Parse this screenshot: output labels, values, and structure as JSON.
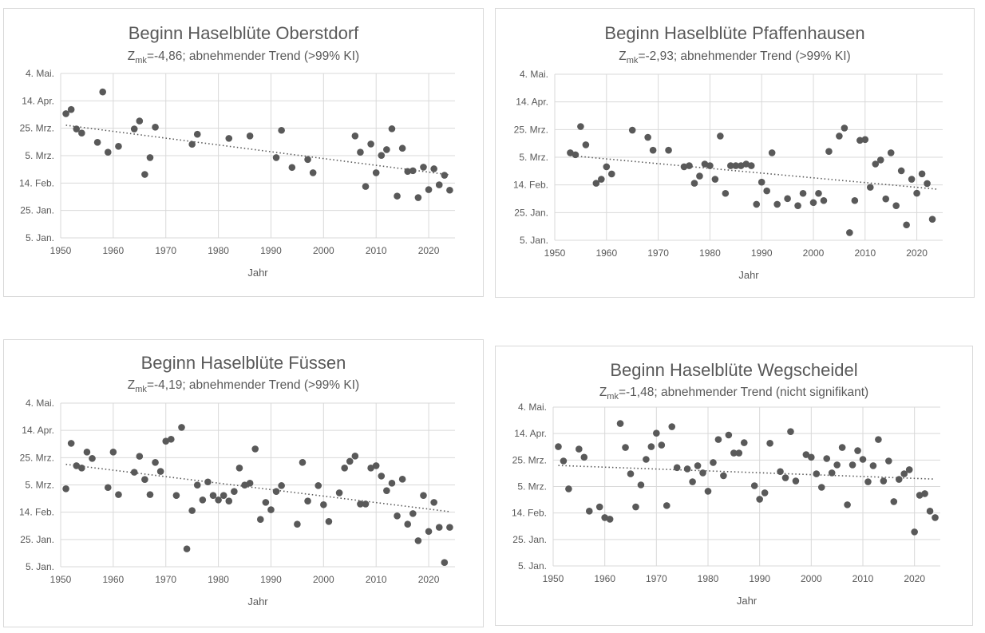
{
  "chart_data": [
    {
      "type": "scatter",
      "title": "Beginn Haselblüte Oberstdorf",
      "subtitle_prefix": "Z",
      "subtitle_sub": "mk",
      "subtitle_rest": "=-4,86; abnehmender Trend (>99% KI)",
      "xlabel": "Jahr",
      "xlim": [
        1950,
        2025
      ],
      "ylim": [
        5,
        125
      ],
      "xticks": [
        1950,
        1960,
        1970,
        1980,
        1990,
        2000,
        2010,
        2020
      ],
      "yticks": [
        {
          "v": 125,
          "label": "4. Mai."
        },
        {
          "v": 105,
          "label": "14. Apr."
        },
        {
          "v": 85,
          "label": "25. Mrz."
        },
        {
          "v": 65,
          "label": "5. Mrz."
        },
        {
          "v": 45,
          "label": "14. Feb."
        },
        {
          "v": 25,
          "label": "25. Jan."
        },
        {
          "v": 5,
          "label": "5. Jan."
        }
      ],
      "y_units": "day of year",
      "trend": [
        [
          1951,
          87.2
        ],
        [
          2024,
          51.0
        ]
      ],
      "points": [
        [
          1951,
          95.6
        ],
        [
          1952,
          98.7
        ],
        [
          1953,
          84.5
        ],
        [
          1954,
          81.5
        ],
        [
          1957,
          74.7
        ],
        [
          1958,
          111.5
        ],
        [
          1959,
          67.5
        ],
        [
          1961,
          71.8
        ],
        [
          1964,
          84.5
        ],
        [
          1965,
          90.3
        ],
        [
          1966,
          51.3
        ],
        [
          1967,
          63.6
        ],
        [
          1968,
          85.8
        ],
        [
          1975,
          73.3
        ],
        [
          1976,
          80.6
        ],
        [
          1982,
          77.6
        ],
        [
          1986,
          79.4
        ],
        [
          1991,
          63.6
        ],
        [
          1992,
          83.5
        ],
        [
          1994,
          56.4
        ],
        [
          1997,
          62.2
        ],
        [
          1998,
          52.5
        ],
        [
          2006,
          79.4
        ],
        [
          2007,
          67.5
        ],
        [
          2008,
          42.5
        ],
        [
          2009,
          73.5
        ],
        [
          2010,
          52.5
        ],
        [
          2011,
          65.2
        ],
        [
          2012,
          69.4
        ],
        [
          2013,
          84.6
        ],
        [
          2014,
          35.5
        ],
        [
          2015,
          70.4
        ],
        [
          2016,
          53.5
        ],
        [
          2017,
          54.0
        ],
        [
          2018,
          34.4
        ],
        [
          2019,
          56.6
        ],
        [
          2020,
          40.2
        ],
        [
          2021,
          55.4
        ],
        [
          2022,
          43.7
        ],
        [
          2023,
          50.7
        ],
        [
          2024,
          39.8
        ]
      ]
    },
    {
      "type": "scatter",
      "title": "Beginn Haselblüte Pfaffenhausen",
      "subtitle_prefix": "Z",
      "subtitle_sub": "mk",
      "subtitle_rest": "=-2,93; abnehmender Trend (>99% KI)",
      "xlabel": "Jahr",
      "xlim": [
        1950,
        2025
      ],
      "ylim": [
        5,
        125
      ],
      "xticks": [
        1950,
        1960,
        1970,
        1980,
        1990,
        2000,
        2010,
        2020
      ],
      "yticks": [
        {
          "v": 125,
          "label": "4. Mai."
        },
        {
          "v": 105,
          "label": "14. Apr."
        },
        {
          "v": 85,
          "label": "25. Mrz."
        },
        {
          "v": 65,
          "label": "5. Mrz."
        },
        {
          "v": 45,
          "label": "14. Feb."
        },
        {
          "v": 25,
          "label": "25. Jan."
        },
        {
          "v": 5,
          "label": "5. Jan."
        }
      ],
      "y_units": "day of year",
      "trend": [
        [
          1953,
          66.2
        ],
        [
          2024,
          41.9
        ]
      ],
      "points": [
        [
          1953,
          68.2
        ],
        [
          1954,
          66.8
        ],
        [
          1955,
          87.2
        ],
        [
          1956,
          74.0
        ],
        [
          1958,
          46.2
        ],
        [
          1959,
          49.1
        ],
        [
          1960,
          58.1
        ],
        [
          1961,
          52.9
        ],
        [
          1965,
          84.6
        ],
        [
          1968,
          79.4
        ],
        [
          1969,
          70.1
        ],
        [
          1972,
          70.1
        ],
        [
          1975,
          58.1
        ],
        [
          1976,
          58.9
        ],
        [
          1977,
          46.2
        ],
        [
          1978,
          51.4
        ],
        [
          1979,
          60.1
        ],
        [
          1980,
          58.9
        ],
        [
          1981,
          49.1
        ],
        [
          1982,
          80.3
        ],
        [
          1983,
          38.9
        ],
        [
          1984,
          58.9
        ],
        [
          1985,
          58.9
        ],
        [
          1986,
          58.9
        ],
        [
          1987,
          60.1
        ],
        [
          1988,
          58.9
        ],
        [
          1989,
          31.0
        ],
        [
          1990,
          47.0
        ],
        [
          1991,
          40.7
        ],
        [
          1992,
          68.2
        ],
        [
          1993,
          31.0
        ],
        [
          1995,
          35.1
        ],
        [
          1997,
          30.0
        ],
        [
          1998,
          38.9
        ],
        [
          2000,
          32.2
        ],
        [
          2001,
          38.9
        ],
        [
          2002,
          33.7
        ],
        [
          2003,
          69.2
        ],
        [
          2005,
          80.3
        ],
        [
          2006,
          86.1
        ],
        [
          2007,
          10.5
        ],
        [
          2008,
          33.7
        ],
        [
          2009,
          77.2
        ],
        [
          2010,
          77.8
        ],
        [
          2011,
          43.3
        ],
        [
          2012,
          60.1
        ],
        [
          2013,
          63.0
        ],
        [
          2014,
          34.9
        ],
        [
          2015,
          68.2
        ],
        [
          2016,
          30.0
        ],
        [
          2017,
          55.2
        ],
        [
          2018,
          16.1
        ],
        [
          2019,
          49.1
        ],
        [
          2020,
          39.0
        ],
        [
          2021,
          53.0
        ],
        [
          2022,
          46.0
        ],
        [
          2023,
          20.2
        ]
      ]
    },
    {
      "type": "scatter",
      "title": "Beginn Haselblüte Füssen",
      "subtitle_prefix": "Z",
      "subtitle_sub": "mk",
      "subtitle_rest": "=-4,19; abnehmender Trend (>99% KI)",
      "xlabel": "Jahr",
      "xlim": [
        1950,
        2025
      ],
      "ylim": [
        5,
        125
      ],
      "xticks": [
        1950,
        1960,
        1970,
        1980,
        1990,
        2000,
        2010,
        2020
      ],
      "yticks": [
        {
          "v": 125,
          "label": "4. Mai."
        },
        {
          "v": 105,
          "label": "14. Apr."
        },
        {
          "v": 85,
          "label": "25. Mrz."
        },
        {
          "v": 65,
          "label": "5. Mrz."
        },
        {
          "v": 45,
          "label": "14. Feb."
        },
        {
          "v": 25,
          "label": "25. Jan."
        },
        {
          "v": 5,
          "label": "5. Jan."
        }
      ],
      "y_units": "day of year",
      "trend": [
        [
          1951,
          80.1
        ],
        [
          2024,
          45.4
        ]
      ],
      "points": [
        [
          1951,
          62.2
        ],
        [
          1952,
          95.5
        ],
        [
          1953,
          79.1
        ],
        [
          1954,
          77.4
        ],
        [
          1955,
          89.1
        ],
        [
          1956,
          84.4
        ],
        [
          1959,
          63.1
        ],
        [
          1960,
          89.1
        ],
        [
          1961,
          57.9
        ],
        [
          1964,
          74.3
        ],
        [
          1965,
          86.0
        ],
        [
          1966,
          69.0
        ],
        [
          1967,
          57.9
        ],
        [
          1968,
          81.5
        ],
        [
          1969,
          74.9
        ],
        [
          1970,
          97.1
        ],
        [
          1971,
          98.5
        ],
        [
          1972,
          57.3
        ],
        [
          1973,
          107.2
        ],
        [
          1974,
          18.1
        ],
        [
          1975,
          46.2
        ],
        [
          1976,
          64.9
        ],
        [
          1977,
          54.0
        ],
        [
          1978,
          67.2
        ],
        [
          1979,
          57.3
        ],
        [
          1980,
          54.0
        ],
        [
          1981,
          57.3
        ],
        [
          1982,
          53.2
        ],
        [
          1983,
          60.2
        ],
        [
          1984,
          77.4
        ],
        [
          1985,
          64.9
        ],
        [
          1986,
          66.3
        ],
        [
          1987,
          91.4
        ],
        [
          1988,
          39.7
        ],
        [
          1989,
          52.2
        ],
        [
          1990,
          46.8
        ],
        [
          1991,
          60.2
        ],
        [
          1992,
          64.5
        ],
        [
          1995,
          36.2
        ],
        [
          1996,
          81.5
        ],
        [
          1997,
          53.2
        ],
        [
          1999,
          64.5
        ],
        [
          2000,
          50.5
        ],
        [
          2001,
          38.2
        ],
        [
          2003,
          59.2
        ],
        [
          2004,
          77.4
        ],
        [
          2005,
          82.3
        ],
        [
          2006,
          86.2
        ],
        [
          2007,
          51.0
        ],
        [
          2008,
          51.0
        ],
        [
          2009,
          77.4
        ],
        [
          2010,
          79.1
        ],
        [
          2011,
          71.5
        ],
        [
          2012,
          60.8
        ],
        [
          2013,
          66.3
        ],
        [
          2014,
          42.3
        ],
        [
          2015,
          69.2
        ],
        [
          2016,
          36.2
        ],
        [
          2017,
          44.0
        ],
        [
          2018,
          24.1
        ],
        [
          2019,
          57.3
        ],
        [
          2020,
          30.9
        ],
        [
          2021,
          52.2
        ],
        [
          2022,
          33.9
        ],
        [
          2023,
          8.1
        ],
        [
          2024,
          33.9
        ]
      ]
    },
    {
      "type": "scatter",
      "title": "Beginn Haselblüte Wegscheidel",
      "subtitle_prefix": "Z",
      "subtitle_sub": "mk",
      "subtitle_rest": "=-1,48; abnehmender Trend (nicht signifikant)",
      "xlabel": "Jahr",
      "xlim": [
        1950,
        2025
      ],
      "ylim": [
        5,
        125
      ],
      "xticks": [
        1950,
        1960,
        1970,
        1980,
        1990,
        2000,
        2010,
        2020
      ],
      "yticks": [
        {
          "v": 125,
          "label": "4. Mai."
        },
        {
          "v": 105,
          "label": "14. Apr."
        },
        {
          "v": 85,
          "label": "25. Mrz."
        },
        {
          "v": 65,
          "label": "5. Mrz."
        },
        {
          "v": 45,
          "label": "14. Feb."
        },
        {
          "v": 25,
          "label": "25. Jan."
        },
        {
          "v": 5,
          "label": "5. Jan."
        }
      ],
      "y_units": "day of year",
      "trend": [
        [
          1951,
          80.9
        ],
        [
          2024,
          70.6
        ]
      ],
      "points": [
        [
          1951,
          95.1
        ],
        [
          1952,
          84.3
        ],
        [
          1953,
          63.2
        ],
        [
          1955,
          93.3
        ],
        [
          1956,
          87.1
        ],
        [
          1957,
          46.4
        ],
        [
          1959,
          49.6
        ],
        [
          1960,
          41.5
        ],
        [
          1961,
          40.3
        ],
        [
          1963,
          112.6
        ],
        [
          1964,
          94.5
        ],
        [
          1965,
          74.6
        ],
        [
          1966,
          49.6
        ],
        [
          1967,
          66.2
        ],
        [
          1968,
          85.5
        ],
        [
          1969,
          95.1
        ],
        [
          1970,
          105.3
        ],
        [
          1971,
          96.3
        ],
        [
          1972,
          50.6
        ],
        [
          1973,
          110.2
        ],
        [
          1974,
          79.3
        ],
        [
          1976,
          78.3
        ],
        [
          1977,
          68.6
        ],
        [
          1978,
          80.7
        ],
        [
          1979,
          75.3
        ],
        [
          1980,
          61.4
        ],
        [
          1981,
          83.1
        ],
        [
          1982,
          100.5
        ],
        [
          1983,
          73.2
        ],
        [
          1984,
          103.9
        ],
        [
          1985,
          90.3
        ],
        [
          1986,
          90.3
        ],
        [
          1987,
          98.1
        ],
        [
          1989,
          65.6
        ],
        [
          1990,
          55.4
        ],
        [
          1991,
          60.2
        ],
        [
          1992,
          97.7
        ],
        [
          1994,
          76.3
        ],
        [
          1995,
          71.6
        ],
        [
          1996,
          106.5
        ],
        [
          1997,
          69.2
        ],
        [
          1999,
          89.1
        ],
        [
          2000,
          87.1
        ],
        [
          2001,
          74.6
        ],
        [
          2002,
          64.4
        ],
        [
          2003,
          86.1
        ],
        [
          2004,
          75.3
        ],
        [
          2005,
          81.3
        ],
        [
          2006,
          94.5
        ],
        [
          2007,
          51.2
        ],
        [
          2008,
          81.3
        ],
        [
          2009,
          92.1
        ],
        [
          2010,
          85.5
        ],
        [
          2011,
          68.6
        ],
        [
          2012,
          80.7
        ],
        [
          2013,
          100.5
        ],
        [
          2014,
          69.2
        ],
        [
          2015,
          84.3
        ],
        [
          2016,
          53.6
        ],
        [
          2017,
          70.4
        ],
        [
          2018,
          74.6
        ],
        [
          2019,
          77.7
        ],
        [
          2020,
          30.7
        ],
        [
          2021,
          58.4
        ],
        [
          2022,
          59.6
        ],
        [
          2023,
          46.4
        ],
        [
          2024,
          41.5
        ]
      ]
    }
  ],
  "colors": {
    "marker": "#595959",
    "grid": "#d9d9d9",
    "text": "#595959",
    "border": "#d9d9d9"
  }
}
